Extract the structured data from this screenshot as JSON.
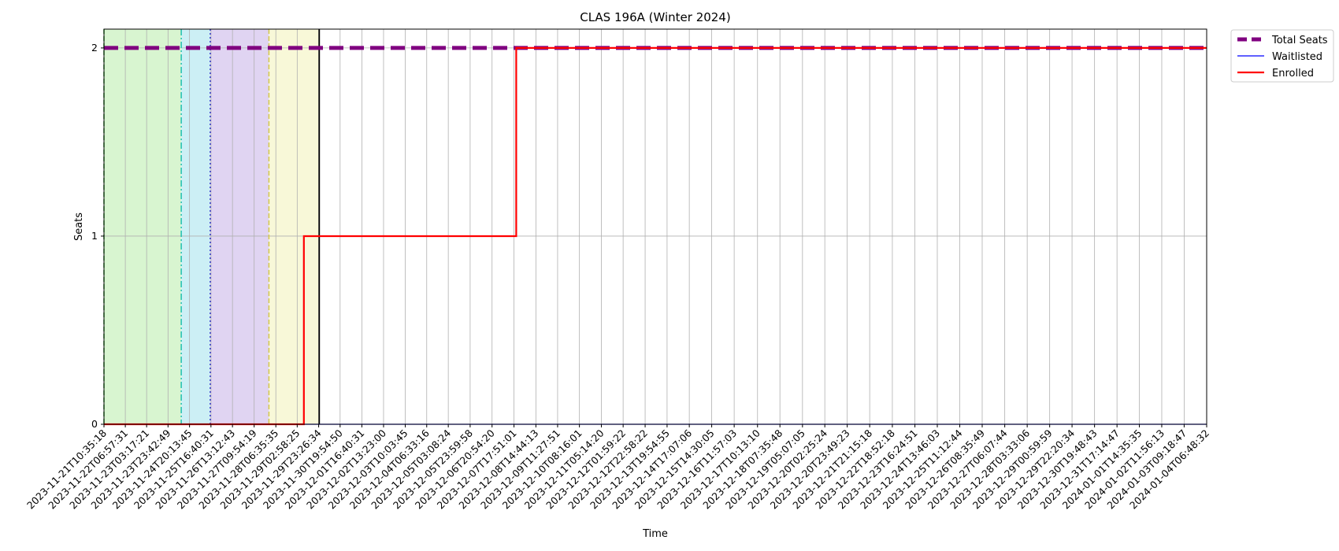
{
  "chart_data": {
    "type": "line",
    "title": "CLAS 196A (Winter 2024)",
    "xlabel": "Time",
    "ylabel": "Seats",
    "ylim": [
      0,
      2.1
    ],
    "yticks": [
      0,
      1,
      2
    ],
    "grid": true,
    "legend_placement": "outside top-right",
    "x_ticks": [
      "2023-11-21T10:35:18",
      "2023-11-22T06:57:31",
      "2023-11-23T03:17:21",
      "2023-11-23T23:42:49",
      "2023-11-24T20:13:45",
      "2023-11-25T16:40:31",
      "2023-11-26T13:12:43",
      "2023-11-27T09:54:19",
      "2023-11-28T06:35:35",
      "2023-11-29T02:58:25",
      "2023-11-29T23:26:34",
      "2023-11-30T19:54:50",
      "2023-12-01T16:40:31",
      "2023-12-02T13:23:00",
      "2023-12-03T10:03:45",
      "2023-12-04T06:33:16",
      "2023-12-05T03:08:24",
      "2023-12-05T23:59:58",
      "2023-12-06T20:54:20",
      "2023-12-07T17:51:01",
      "2023-12-08T14:44:13",
      "2023-12-09T11:27:51",
      "2023-12-10T08:16:01",
      "2023-12-11T05:14:20",
      "2023-12-12T01:59:22",
      "2023-12-12T22:58:22",
      "2023-12-13T19:54:55",
      "2023-12-14T17:07:06",
      "2023-12-15T14:30:05",
      "2023-12-16T11:57:03",
      "2023-12-17T10:13:10",
      "2023-12-18T07:35:48",
      "2023-12-19T05:07:05",
      "2023-12-20T02:25:24",
      "2023-12-20T23:49:23",
      "2023-12-21T21:15:18",
      "2023-12-22T18:52:18",
      "2023-12-23T16:24:51",
      "2023-12-24T13:46:03",
      "2023-12-25T11:12:44",
      "2023-12-26T08:35:49",
      "2023-12-27T06:07:44",
      "2023-12-28T03:33:06",
      "2023-12-29T00:59:59",
      "2023-12-29T22:20:34",
      "2023-12-30T19:48:43",
      "2023-12-31T17:14:47",
      "2024-01-01T14:35:35",
      "2024-01-02T11:56:13",
      "2024-01-03T09:18:47",
      "2024-01-04T06:48:32"
    ],
    "x_range": [
      "2023-11-21T10:35:18",
      "2024-01-04T06:48:32"
    ],
    "series": [
      {
        "name": "Total Seats",
        "color": "#800080",
        "style": "dashed-thick",
        "points": [
          [
            "2023-11-21T10:35:18",
            2
          ],
          [
            "2024-01-04T06:48:32",
            2
          ]
        ]
      },
      {
        "name": "Waitlisted",
        "color": "#0000ff",
        "style": "solid-thin",
        "points": [
          [
            "2023-11-21T10:35:18",
            0
          ],
          [
            "2024-01-04T06:48:32",
            0
          ]
        ]
      },
      {
        "name": "Enrolled",
        "color": "#ff0000",
        "style": "step",
        "points": [
          [
            "2023-11-21T10:35:18",
            0
          ],
          [
            "2023-11-29T09:20:00",
            0
          ],
          [
            "2023-11-29T09:20:00",
            1
          ],
          [
            "2023-12-07T20:00:00",
            1
          ],
          [
            "2023-12-07T20:00:00",
            2
          ],
          [
            "2024-01-04T06:48:32",
            2
          ]
        ]
      }
    ],
    "shaded_periods": [
      {
        "start": "2023-11-21T10:35:18",
        "end": "2023-11-24T12:20:00",
        "color": "#d8f5d0",
        "edge_color": "#33aa33"
      },
      {
        "start": "2023-11-24T12:20:00",
        "end": "2023-11-25T16:00:00",
        "color": "#cceff5",
        "edge_color": "#20c0b0"
      },
      {
        "start": "2023-11-25T16:00:00",
        "end": "2023-11-28T00:00:00",
        "color": "#e0d4f2",
        "edge_color": "#3333cc"
      },
      {
        "start": "2023-11-28T00:00:00",
        "end": "2023-11-30T00:00:00",
        "color": "#f8f8d8",
        "edge_color": "#d4c84a"
      }
    ],
    "vertical_marker": "2023-11-30T00:00:00"
  }
}
